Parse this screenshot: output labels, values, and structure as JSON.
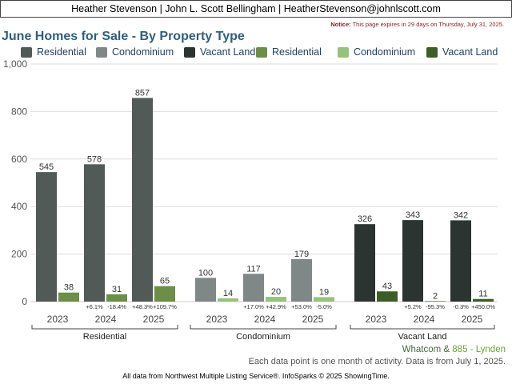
{
  "header": {
    "agent_line": "Heather Stevenson | John L. Scott Bellingham | HeatherStevenson@johnlscott.com",
    "notice_label": "Notice:",
    "notice_text": "This page expires in 29 days on Thursday, July 31, 2025."
  },
  "colors": {
    "residential_dark": "#515a56",
    "condo_dark": "#7f8886",
    "vacant_dark": "#2c3431",
    "residential_light": "#6b8f45",
    "condo_light": "#97c27a",
    "vacant_light": "#3b5e24"
  },
  "chart_data": {
    "type": "bar",
    "title": "June Homes for Sale - By Property Type",
    "ylim": [
      0,
      1000
    ],
    "yticks": [
      "0",
      "200",
      "400",
      "600",
      "800",
      "1,000"
    ],
    "ytick_values": [
      0,
      200,
      400,
      600,
      800,
      1000
    ],
    "legend_position": "top",
    "grid": true,
    "legend": [
      {
        "label": "Residential",
        "color": "#515a56"
      },
      {
        "label": "Condominium",
        "color": "#7f8886"
      },
      {
        "label": "Vacant Land",
        "color": "#2c3431"
      },
      {
        "label": "Residential",
        "color": "#6b8f45"
      },
      {
        "label": "Condominium",
        "color": "#97c27a"
      },
      {
        "label": "Vacant Land",
        "color": "#3b5e24"
      }
    ],
    "groups": [
      {
        "name": "Residential",
        "years": [
          "2023",
          "2024",
          "2025"
        ],
        "primary": [
          545,
          578,
          857
        ],
        "primary_labels": [
          "545",
          "578",
          "857"
        ],
        "secondary": [
          38,
          31,
          65
        ],
        "secondary_labels": [
          "38",
          "31",
          "65"
        ],
        "changes": [
          [
            "",
            ""
          ],
          [
            "+6.1%",
            "-18.4%"
          ],
          [
            "+48.3%",
            "+109.7%"
          ]
        ]
      },
      {
        "name": "Condominium",
        "years": [
          "2023",
          "2024",
          "2025"
        ],
        "primary": [
          100,
          117,
          179
        ],
        "primary_labels": [
          "100",
          "117",
          "179"
        ],
        "secondary": [
          14,
          20,
          19
        ],
        "secondary_labels": [
          "14",
          "20",
          "19"
        ],
        "changes": [
          [
            "",
            ""
          ],
          [
            "+17.0%",
            "+42.9%"
          ],
          [
            "+53.0%",
            "-5.0%"
          ]
        ]
      },
      {
        "name": "Vacant Land",
        "years": [
          "2023",
          "2024",
          "2025"
        ],
        "primary": [
          326,
          343,
          342
        ],
        "primary_labels": [
          "326",
          "343",
          "342"
        ],
        "secondary": [
          43,
          2,
          11
        ],
        "secondary_labels": [
          "43",
          "2",
          "11"
        ],
        "changes": [
          [
            "",
            ""
          ],
          [
            "+5.2%",
            "-95.3%"
          ],
          [
            "-0.3%",
            "+450.0%"
          ]
        ]
      }
    ]
  },
  "footer": {
    "region": "Whatcom &",
    "count": "885 - Lynden",
    "note": "Each data point is one month of activity. Data is from July 1, 2025.",
    "source": "All data from Northwest Multiple Listing Service®. InfoSparks © 2025 ShowingTime."
  }
}
